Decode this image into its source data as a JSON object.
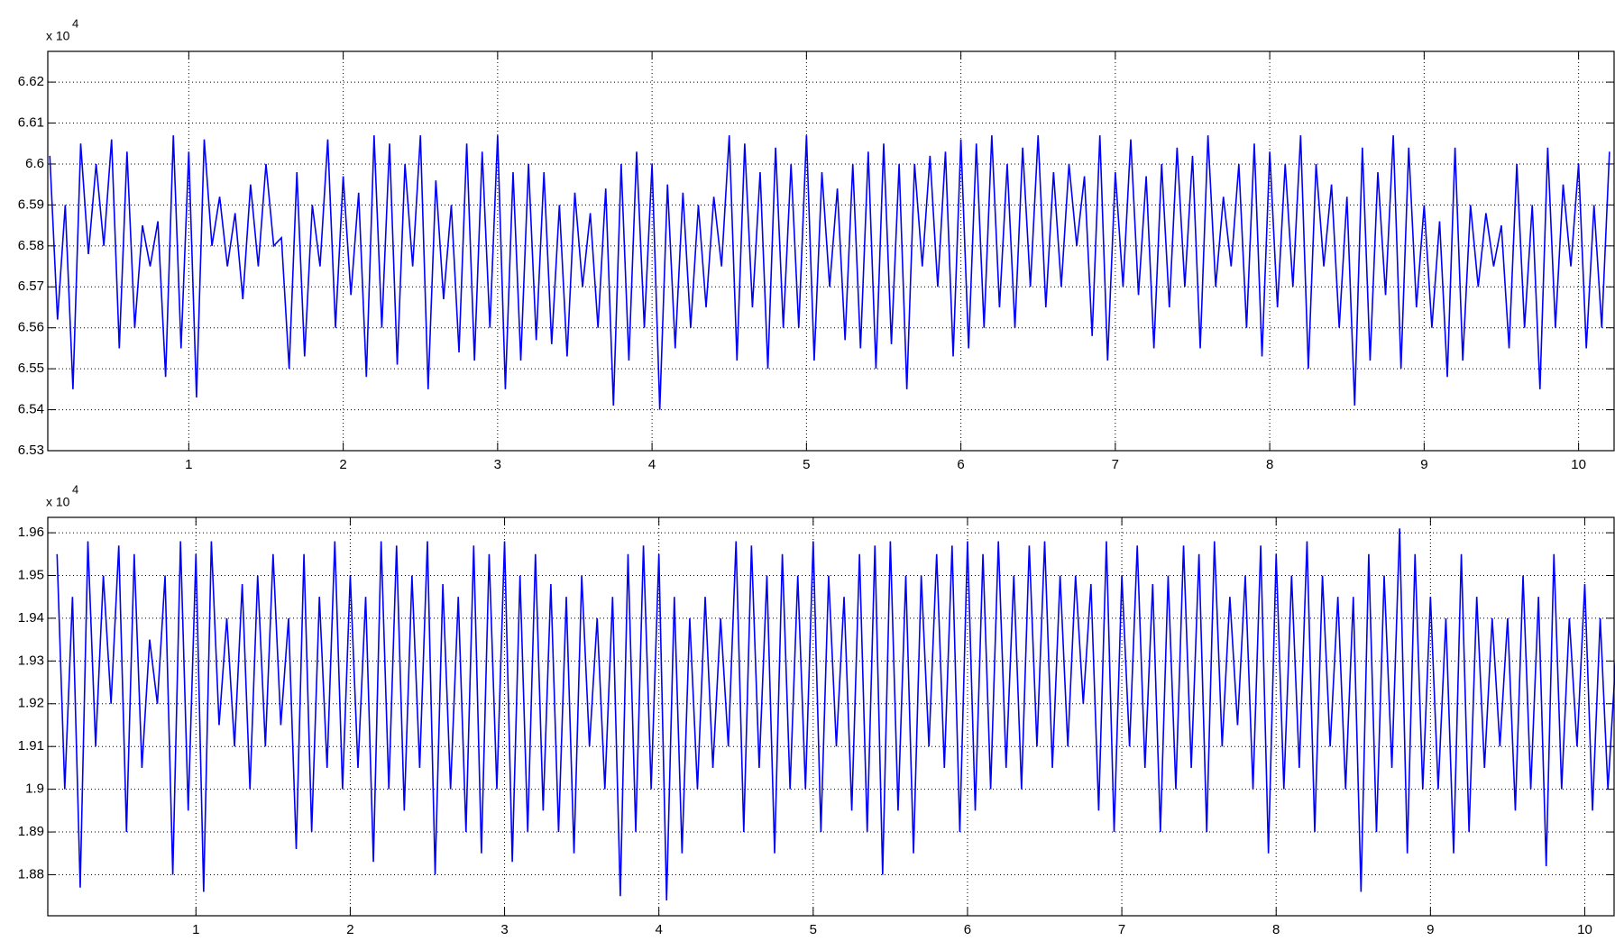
{
  "chart_data": [
    {
      "type": "line",
      "y_multiplier": "x 10",
      "y_exponent": "4",
      "xlim": [
        0.087,
        10.23
      ],
      "ylim": [
        6.53,
        6.6275
      ],
      "xticks": [
        1,
        2,
        3,
        4,
        5,
        6,
        7,
        8,
        9,
        10
      ],
      "yticks": [
        6.53,
        6.54,
        6.55,
        6.56,
        6.57,
        6.58,
        6.59,
        6.6,
        6.61,
        6.62
      ],
      "grid": true,
      "series": [
        {
          "color": "#0000ff",
          "x": [
            0.1,
            0.15,
            0.2,
            0.25,
            0.3,
            0.35,
            0.4,
            0.45,
            0.5,
            0.55,
            0.6,
            0.65,
            0.7,
            0.75,
            0.8,
            0.85,
            0.9,
            0.95,
            1.0,
            1.05,
            1.1,
            1.15,
            1.2,
            1.25,
            1.3,
            1.35,
            1.4,
            1.45,
            1.5,
            1.55,
            1.6,
            1.65,
            1.7,
            1.75,
            1.8,
            1.85,
            1.9,
            1.95,
            2.0,
            2.05,
            2.1,
            2.15,
            2.2,
            2.25,
            2.3,
            2.35,
            2.4,
            2.45,
            2.5,
            2.55,
            2.6,
            2.65,
            2.7,
            2.75,
            2.8,
            2.85,
            2.9,
            2.95,
            3.0,
            3.05,
            3.1,
            3.15,
            3.2,
            3.25,
            3.3,
            3.35,
            3.4,
            3.45,
            3.5,
            3.55,
            3.6,
            3.65,
            3.7,
            3.75,
            3.8,
            3.85,
            3.9,
            3.95,
            4.0,
            4.05,
            4.1,
            4.15,
            4.2,
            4.25,
            4.3,
            4.35,
            4.4,
            4.45,
            4.5,
            4.55,
            4.6,
            4.65,
            4.7,
            4.75,
            4.8,
            4.85,
            4.9,
            4.95,
            5.0,
            5.05,
            5.1,
            5.15,
            5.2,
            5.25,
            5.3,
            5.35,
            5.4,
            5.45,
            5.5,
            5.55,
            5.6,
            5.65,
            5.7,
            5.75,
            5.8,
            5.85,
            5.9,
            5.95,
            6.0,
            6.05,
            6.1,
            6.15,
            6.2,
            6.25,
            6.3,
            6.35,
            6.4,
            6.45,
            6.5,
            6.55,
            6.6,
            6.65,
            6.7,
            6.75,
            6.8,
            6.85,
            6.9,
            6.95,
            7.0,
            7.05,
            7.1,
            7.15,
            7.2,
            7.25,
            7.3,
            7.35,
            7.4,
            7.45,
            7.5,
            7.55,
            7.6,
            7.65,
            7.7,
            7.75,
            7.8,
            7.85,
            7.9,
            7.95,
            8.0,
            8.05,
            8.1,
            8.15,
            8.2,
            8.25,
            8.3,
            8.35,
            8.4,
            8.45,
            8.5,
            8.55,
            8.6,
            8.65,
            8.7,
            8.75,
            8.8,
            8.85,
            8.9,
            8.95,
            9.0,
            9.05,
            9.1,
            9.15,
            9.2,
            9.25,
            9.3,
            9.35,
            9.4,
            9.45,
            9.5,
            9.55,
            9.6,
            9.65,
            9.7,
            9.75,
            9.8,
            9.85,
            9.9,
            9.95,
            10.0,
            10.05,
            10.1,
            10.15,
            10.2
          ],
          "values": [
            6.602,
            6.562,
            6.59,
            6.545,
            6.605,
            6.578,
            6.6,
            6.58,
            6.606,
            6.555,
            6.603,
            6.56,
            6.585,
            6.575,
            6.586,
            6.548,
            6.607,
            6.555,
            6.603,
            6.543,
            6.606,
            6.58,
            6.592,
            6.575,
            6.588,
            6.567,
            6.595,
            6.575,
            6.6,
            6.58,
            6.582,
            6.55,
            6.598,
            6.553,
            6.59,
            6.575,
            6.606,
            6.56,
            6.597,
            6.568,
            6.593,
            6.548,
            6.607,
            6.56,
            6.605,
            6.551,
            6.6,
            6.575,
            6.607,
            6.545,
            6.596,
            6.567,
            6.59,
            6.554,
            6.605,
            6.552,
            6.603,
            6.56,
            6.607,
            6.545,
            6.598,
            6.552,
            6.6,
            6.557,
            6.598,
            6.556,
            6.59,
            6.553,
            6.593,
            6.57,
            6.588,
            6.56,
            6.594,
            6.541,
            6.6,
            6.552,
            6.603,
            6.56,
            6.6,
            6.54,
            6.595,
            6.555,
            6.593,
            6.56,
            6.59,
            6.565,
            6.592,
            6.575,
            6.607,
            6.552,
            6.605,
            6.565,
            6.598,
            6.55,
            6.604,
            6.56,
            6.6,
            6.56,
            6.607,
            6.552,
            6.598,
            6.57,
            6.594,
            6.557,
            6.6,
            6.555,
            6.603,
            6.55,
            6.605,
            6.556,
            6.6,
            6.545,
            6.6,
            6.575,
            6.602,
            6.57,
            6.603,
            6.553,
            6.606,
            6.555,
            6.605,
            6.56,
            6.607,
            6.565,
            6.6,
            6.56,
            6.604,
            6.57,
            6.607,
            6.565,
            6.598,
            6.57,
            6.6,
            6.58,
            6.597,
            6.558,
            6.607,
            6.552,
            6.598,
            6.57,
            6.606,
            6.568,
            6.597,
            6.555,
            6.6,
            6.565,
            6.604,
            6.57,
            6.602,
            6.555,
            6.607,
            6.57,
            6.592,
            6.575,
            6.6,
            6.56,
            6.605,
            6.553,
            6.603,
            6.565,
            6.6,
            6.57,
            6.607,
            6.55,
            6.6,
            6.575,
            6.595,
            6.56,
            6.592,
            6.541,
            6.604,
            6.552,
            6.598,
            6.568,
            6.607,
            6.55,
            6.604,
            6.565,
            6.59,
            6.56,
            6.586,
            6.548,
            6.604,
            6.552,
            6.59,
            6.57,
            6.588,
            6.575,
            6.585,
            6.555,
            6.6,
            6.56,
            6.59,
            6.545,
            6.604,
            6.56,
            6.595,
            6.575,
            6.6,
            6.555,
            6.59,
            6.56,
            6.603
          ]
        }
      ]
    },
    {
      "type": "line",
      "y_multiplier": "x 10",
      "y_exponent": "4",
      "xlim": [
        0.04,
        10.19
      ],
      "ylim": [
        1.8704,
        1.9636
      ],
      "xticks": [
        1,
        2,
        3,
        4,
        5,
        6,
        7,
        8,
        9,
        10
      ],
      "yticks": [
        1.88,
        1.89,
        1.9,
        1.91,
        1.92,
        1.93,
        1.94,
        1.95,
        1.96
      ],
      "grid": true,
      "series": [
        {
          "color": "#0000ff",
          "x": [
            0.1,
            0.15,
            0.2,
            0.25,
            0.3,
            0.35,
            0.4,
            0.45,
            0.5,
            0.55,
            0.6,
            0.65,
            0.7,
            0.75,
            0.8,
            0.85,
            0.9,
            0.95,
            1.0,
            1.05,
            1.1,
            1.15,
            1.2,
            1.25,
            1.3,
            1.35,
            1.4,
            1.45,
            1.5,
            1.55,
            1.6,
            1.65,
            1.7,
            1.75,
            1.8,
            1.85,
            1.9,
            1.95,
            2.0,
            2.05,
            2.1,
            2.15,
            2.2,
            2.25,
            2.3,
            2.35,
            2.4,
            2.45,
            2.5,
            2.55,
            2.6,
            2.65,
            2.7,
            2.75,
            2.8,
            2.85,
            2.9,
            2.95,
            3.0,
            3.05,
            3.1,
            3.15,
            3.2,
            3.25,
            3.3,
            3.35,
            3.4,
            3.45,
            3.5,
            3.55,
            3.6,
            3.65,
            3.7,
            3.75,
            3.8,
            3.85,
            3.9,
            3.95,
            4.0,
            4.05,
            4.1,
            4.15,
            4.2,
            4.25,
            4.3,
            4.35,
            4.4,
            4.45,
            4.5,
            4.55,
            4.6,
            4.65,
            4.7,
            4.75,
            4.8,
            4.85,
            4.9,
            4.95,
            5.0,
            5.05,
            5.1,
            5.15,
            5.2,
            5.25,
            5.3,
            5.35,
            5.4,
            5.45,
            5.5,
            5.55,
            5.6,
            5.65,
            5.7,
            5.75,
            5.8,
            5.85,
            5.9,
            5.95,
            6.0,
            6.05,
            6.1,
            6.15,
            6.2,
            6.25,
            6.3,
            6.35,
            6.4,
            6.45,
            6.5,
            6.55,
            6.6,
            6.65,
            6.7,
            6.75,
            6.8,
            6.85,
            6.9,
            6.95,
            7.0,
            7.05,
            7.1,
            7.15,
            7.2,
            7.25,
            7.3,
            7.35,
            7.4,
            7.45,
            7.5,
            7.55,
            7.6,
            7.65,
            7.7,
            7.75,
            7.8,
            7.85,
            7.9,
            7.95,
            8.0,
            8.05,
            8.1,
            8.15,
            8.2,
            8.25,
            8.3,
            8.35,
            8.4,
            8.45,
            8.5,
            8.55,
            8.6,
            8.65,
            8.7,
            8.75,
            8.8,
            8.85,
            8.9,
            8.95,
            9.0,
            9.05,
            9.1,
            9.15,
            9.2,
            9.25,
            9.3,
            9.35,
            9.4,
            9.45,
            9.5,
            9.55,
            9.6,
            9.65,
            9.7,
            9.75,
            9.8,
            9.85,
            9.9,
            9.95,
            10.0,
            10.05,
            10.1,
            10.15,
            10.2
          ],
          "values": [
            1.955,
            1.9,
            1.945,
            1.877,
            1.958,
            1.91,
            1.95,
            1.92,
            1.957,
            1.89,
            1.955,
            1.905,
            1.935,
            1.92,
            1.95,
            1.88,
            1.958,
            1.895,
            1.955,
            1.876,
            1.958,
            1.915,
            1.94,
            1.91,
            1.948,
            1.9,
            1.95,
            1.91,
            1.955,
            1.915,
            1.94,
            1.886,
            1.955,
            1.89,
            1.945,
            1.905,
            1.958,
            1.9,
            1.95,
            1.905,
            1.945,
            1.883,
            1.958,
            1.9,
            1.957,
            1.895,
            1.95,
            1.905,
            1.958,
            1.88,
            1.948,
            1.9,
            1.945,
            1.89,
            1.957,
            1.885,
            1.955,
            1.9,
            1.958,
            1.883,
            1.95,
            1.89,
            1.955,
            1.895,
            1.948,
            1.89,
            1.945,
            1.885,
            1.95,
            1.91,
            1.94,
            1.9,
            1.945,
            1.875,
            1.955,
            1.89,
            1.957,
            1.9,
            1.955,
            1.874,
            1.945,
            1.885,
            1.94,
            1.9,
            1.945,
            1.905,
            1.94,
            1.91,
            1.958,
            1.89,
            1.957,
            1.905,
            1.95,
            1.885,
            1.955,
            1.9,
            1.95,
            1.9,
            1.958,
            1.89,
            1.95,
            1.91,
            1.945,
            1.895,
            1.955,
            1.89,
            1.957,
            1.88,
            1.958,
            1.895,
            1.95,
            1.885,
            1.95,
            1.91,
            1.955,
            1.905,
            1.957,
            1.89,
            1.958,
            1.895,
            1.955,
            1.9,
            1.958,
            1.905,
            1.95,
            1.9,
            1.957,
            1.91,
            1.958,
            1.905,
            1.95,
            1.91,
            1.95,
            1.92,
            1.948,
            1.895,
            1.958,
            1.89,
            1.95,
            1.91,
            1.957,
            1.905,
            1.948,
            1.89,
            1.95,
            1.9,
            1.957,
            1.905,
            1.955,
            1.89,
            1.958,
            1.91,
            1.945,
            1.915,
            1.95,
            1.9,
            1.957,
            1.885,
            1.955,
            1.9,
            1.95,
            1.905,
            1.958,
            1.89,
            1.95,
            1.91,
            1.945,
            1.9,
            1.945,
            1.876,
            1.955,
            1.89,
            1.95,
            1.905,
            1.961,
            1.885,
            1.955,
            1.9,
            1.945,
            1.9,
            1.94,
            1.885,
            1.955,
            1.89,
            1.945,
            1.905,
            1.94,
            1.91,
            1.94,
            1.895,
            1.95,
            1.9,
            1.945,
            1.882,
            1.955,
            1.9,
            1.94,
            1.91,
            1.948,
            1.895,
            1.94,
            1.9,
            1.93
          ]
        }
      ]
    }
  ]
}
